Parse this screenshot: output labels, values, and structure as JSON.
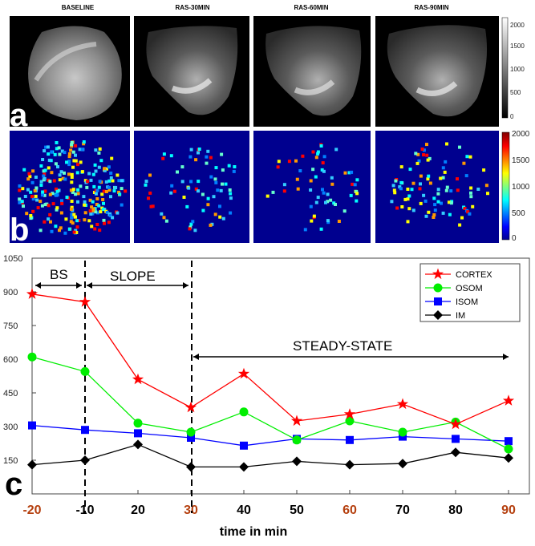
{
  "panels": {
    "titles": [
      "BASELINE",
      "RAS-30MIN",
      "RAS-60MIN",
      "RAS-90MIN"
    ],
    "letters": {
      "a": "a",
      "b": "b",
      "c": "c"
    },
    "gray_colorbar": {
      "ticks": [
        "2000",
        "1500",
        "1000",
        "500",
        "0"
      ]
    },
    "jet_colorbar": {
      "ticks": [
        "2000",
        "1500",
        "1000",
        "500",
        "0"
      ]
    }
  },
  "annotations": {
    "bs": "BS",
    "slope": "SLOPE",
    "steady": "STEADY-STATE"
  },
  "colors": {
    "cortex": "#ff0000",
    "osom": "#00ee00",
    "isom": "#0000ff",
    "im": "#000000",
    "highlight_tick": "#b5400f"
  },
  "chart_data": {
    "type": "line",
    "title": "",
    "xlabel": "time in min",
    "ylabel": "",
    "categories": [
      "-20",
      "-10",
      "20",
      "30",
      "40",
      "50",
      "60",
      "70",
      "80",
      "90"
    ],
    "highlighted_categories": [
      "-20",
      "30",
      "60",
      "90"
    ],
    "yticks": [
      "1050",
      "900",
      "750",
      "600",
      "450",
      "300",
      "150"
    ],
    "ylim": [
      0,
      1050
    ],
    "series": [
      {
        "name": "CORTEX",
        "marker": "star",
        "values": [
          890,
          855,
          510,
          385,
          535,
          325,
          355,
          400,
          310,
          415
        ]
      },
      {
        "name": "OSOM",
        "marker": "circle",
        "values": [
          610,
          545,
          315,
          275,
          365,
          240,
          325,
          275,
          320,
          200
        ]
      },
      {
        "name": "ISOM",
        "marker": "square",
        "values": [
          305,
          285,
          270,
          250,
          215,
          245,
          240,
          255,
          245,
          235
        ]
      },
      {
        "name": "IM",
        "marker": "diamond",
        "values": [
          130,
          150,
          220,
          120,
          120,
          145,
          130,
          135,
          185,
          160
        ]
      }
    ]
  }
}
